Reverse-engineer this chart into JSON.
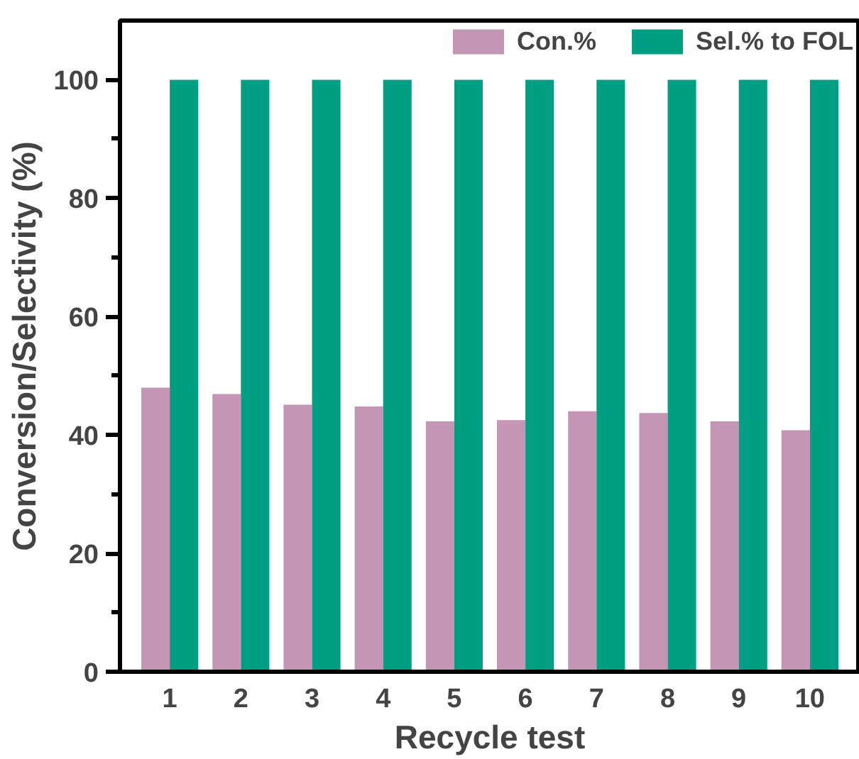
{
  "chart_data": {
    "type": "bar",
    "xlabel": "Recycle test",
    "ylabel": "Conversion/Selectivity (%)",
    "categories": [
      "1",
      "2",
      "3",
      "4",
      "5",
      "6",
      "7",
      "8",
      "9",
      "10"
    ],
    "series": [
      {
        "name": "Con.%",
        "color": "#c495b4",
        "values": [
          48.0,
          46.9,
          45.1,
          44.8,
          42.3,
          42.5,
          44.0,
          43.7,
          42.3,
          40.8
        ]
      },
      {
        "name": "Sel.% to FOL",
        "color": "#009e82",
        "values": [
          100,
          100,
          100,
          100,
          100,
          100,
          100,
          100,
          100,
          100
        ]
      }
    ],
    "ylim": [
      0,
      110
    ],
    "yticks": [
      0,
      {
        "value": 10,
        "label": null
      },
      20,
      {
        "value": 30,
        "label": null
      },
      40,
      {
        "value": 50,
        "label": null
      },
      60,
      {
        "value": 70,
        "label": null
      },
      80,
      {
        "value": 90,
        "label": null
      },
      100
    ],
    "grid": false,
    "legend": "top right"
  }
}
